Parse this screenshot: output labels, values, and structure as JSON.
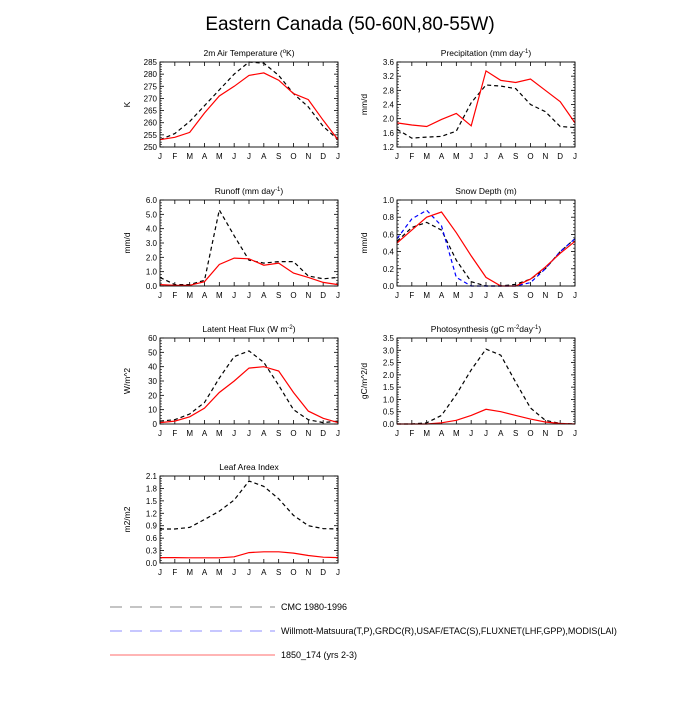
{
  "title": "Eastern Canada (50-60N,80-55W)",
  "chart_data": [
    {
      "type": "line",
      "title": "2m Air Temperature (°K)",
      "title_main": "2m Air Temperature (",
      "title_sup": "o",
      "title_tail": "K)",
      "ylabel": "K",
      "xlabel": "",
      "categories": [
        "J",
        "F",
        "M",
        "A",
        "M",
        "J",
        "J",
        "A",
        "S",
        "O",
        "N",
        "D",
        "J"
      ],
      "ylim": [
        250,
        285
      ],
      "yticks": [
        250,
        255,
        260,
        265,
        270,
        275,
        280,
        285
      ],
      "ytick_labels": [
        "250",
        "255",
        "260",
        "265",
        "270",
        "275",
        "280",
        "285"
      ],
      "series": [
        {
          "name": "CMC 1980-1996",
          "style": "dash-black",
          "values": [
            253.0,
            255.5,
            260.5,
            267.0,
            273.5,
            280.0,
            285.0,
            284.5,
            279.5,
            272.0,
            266.5,
            258.5,
            253.0
          ]
        },
        {
          "name": "1850_174 (yrs 2-3)",
          "style": "solid-red",
          "values": [
            253.0,
            254.0,
            256.0,
            264.0,
            271.0,
            275.0,
            279.5,
            280.5,
            277.5,
            272.0,
            269.5,
            261.0,
            253.0
          ]
        }
      ]
    },
    {
      "type": "line",
      "title": "Precipitation (mm day-1)",
      "title_main": "Precipitation (mm day",
      "title_sup": "-1",
      "title_tail": ")",
      "ylabel": "mm/d",
      "xlabel": "",
      "categories": [
        "J",
        "F",
        "M",
        "A",
        "M",
        "J",
        "J",
        "A",
        "S",
        "O",
        "N",
        "D",
        "J"
      ],
      "ylim": [
        1.2,
        3.6
      ],
      "yticks": [
        1.2,
        1.6,
        2.0,
        2.4,
        2.8,
        3.2,
        3.6
      ],
      "ytick_labels": [
        "1.2",
        "1.6",
        "2.0",
        "2.4",
        "2.8",
        "3.2",
        "3.6"
      ],
      "series": [
        {
          "name": "CMC 1980-1996",
          "style": "dash-black",
          "values": [
            1.7,
            1.45,
            1.48,
            1.5,
            1.65,
            2.45,
            2.95,
            2.92,
            2.85,
            2.4,
            2.2,
            1.78,
            1.75
          ]
        },
        {
          "name": "1850_174 (yrs 2-3)",
          "style": "solid-red",
          "values": [
            1.88,
            1.82,
            1.78,
            1.98,
            2.15,
            1.8,
            3.35,
            3.08,
            3.02,
            3.12,
            2.8,
            2.48,
            1.88
          ]
        }
      ]
    },
    {
      "type": "line",
      "title": "Runoff (mm day-1)",
      "title_main": "Runoff (mm day",
      "title_sup": "-1",
      "title_tail": ")",
      "ylabel": "mm/d",
      "xlabel": "",
      "categories": [
        "J",
        "F",
        "M",
        "A",
        "M",
        "J",
        "J",
        "A",
        "S",
        "O",
        "N",
        "D",
        "J"
      ],
      "ylim": [
        0,
        6
      ],
      "yticks": [
        0,
        1,
        2,
        3,
        4,
        5,
        6
      ],
      "ytick_labels": [
        "0.0",
        "1.0",
        "2.0",
        "3.0",
        "4.0",
        "5.0",
        "6.0"
      ],
      "series": [
        {
          "name": "CMC 1980-1996",
          "style": "dash-black",
          "values": [
            0.6,
            0.1,
            0.1,
            0.4,
            5.3,
            3.5,
            1.8,
            1.6,
            1.7,
            1.7,
            0.7,
            0.5,
            0.6
          ]
        },
        {
          "name": "1850_174 (yrs 2-3)",
          "style": "solid-red",
          "values": [
            0.1,
            0.05,
            0.05,
            0.3,
            1.5,
            1.95,
            1.9,
            1.45,
            1.6,
            0.9,
            0.6,
            0.25,
            0.1
          ]
        }
      ]
    },
    {
      "type": "line",
      "title": "Snow Depth (m)",
      "title_main": "Snow Depth (m)",
      "title_sup": "",
      "title_tail": "",
      "ylabel": "mm/d",
      "xlabel": "",
      "categories": [
        "J",
        "F",
        "M",
        "A",
        "M",
        "J",
        "J",
        "A",
        "S",
        "O",
        "N",
        "D",
        "J"
      ],
      "ylim": [
        0,
        1.0
      ],
      "yticks": [
        0,
        0.2,
        0.4,
        0.6,
        0.8,
        1.0
      ],
      "ytick_labels": [
        "0.0",
        "0.2",
        "0.4",
        "0.6",
        "0.8",
        "1.0"
      ],
      "series": [
        {
          "name": "CMC 1980-1996",
          "style": "dash-black",
          "values": [
            0.52,
            0.68,
            0.74,
            0.65,
            0.3,
            0.05,
            0.0,
            0.0,
            0.02,
            0.08,
            0.2,
            0.4,
            0.55
          ]
        },
        {
          "name": "Willmott-Matsuura(T,P),GRDC(R),USAF/ETAC(S),FLUXNET(LHF,GPP),MODIS(LAI)",
          "style": "dash-blue",
          "values": [
            0.55,
            0.78,
            0.88,
            0.7,
            0.1,
            0.0,
            0.0,
            0.0,
            0.0,
            0.04,
            0.2,
            0.4,
            0.55
          ]
        },
        {
          "name": "1850_174 (yrs 2-3)",
          "style": "solid-red",
          "values": [
            0.5,
            0.65,
            0.8,
            0.86,
            0.62,
            0.35,
            0.1,
            0.0,
            0.0,
            0.08,
            0.22,
            0.38,
            0.52
          ]
        }
      ]
    },
    {
      "type": "line",
      "title": "Latent Heat Flux (W m-2)",
      "title_main": "Latent Heat Flux (W m",
      "title_sup": "-2",
      "title_tail": ")",
      "ylabel": "W/m^2",
      "xlabel": "",
      "categories": [
        "J",
        "F",
        "M",
        "A",
        "M",
        "J",
        "J",
        "A",
        "S",
        "O",
        "N",
        "D",
        "J"
      ],
      "ylim": [
        0,
        60
      ],
      "yticks": [
        0,
        10,
        20,
        30,
        40,
        50,
        60
      ],
      "ytick_labels": [
        "0",
        "10",
        "20",
        "30",
        "40",
        "50",
        "60"
      ],
      "series": [
        {
          "name": "CMC 1980-1996",
          "style": "dash-black",
          "values": [
            2,
            3,
            7,
            15,
            32,
            47,
            51,
            43,
            27,
            10,
            3,
            1,
            2
          ]
        },
        {
          "name": "1850_174 (yrs 2-3)",
          "style": "solid-red",
          "values": [
            1,
            2,
            5,
            11,
            22,
            30,
            39,
            40,
            37,
            22,
            9,
            4,
            1
          ]
        }
      ]
    },
    {
      "type": "line",
      "title": "Photosynthesis (gC m-2day-1)",
      "title_main": "Photosynthesis (gC m",
      "title_sup": "-2",
      "title_tail": "day-1)",
      "title_parts": [
        {
          "t": "Photosynthesis (gC m",
          "sup": false
        },
        {
          "t": "-2",
          "sup": true
        },
        {
          "t": "day",
          "sup": false
        },
        {
          "t": "-1",
          "sup": true
        },
        {
          "t": ")",
          "sup": false
        }
      ],
      "ylabel": "gC/m^2/d",
      "xlabel": "",
      "categories": [
        "J",
        "F",
        "M",
        "A",
        "M",
        "J",
        "J",
        "A",
        "S",
        "O",
        "N",
        "D",
        "J"
      ],
      "ylim": [
        0,
        3.5
      ],
      "yticks": [
        0,
        0.5,
        1.0,
        1.5,
        2.0,
        2.5,
        3.0,
        3.5
      ],
      "ytick_labels": [
        "0.0",
        "0.5",
        "1.0",
        "1.5",
        "2.0",
        "2.5",
        "3.0",
        "3.5"
      ],
      "series": [
        {
          "name": "CMC 1980-1996",
          "style": "dash-black",
          "values": [
            0.0,
            0.0,
            0.05,
            0.35,
            1.2,
            2.2,
            3.05,
            2.8,
            1.7,
            0.65,
            0.15,
            0.02,
            0.0
          ]
        },
        {
          "name": "1850_174 (yrs 2-3)",
          "style": "solid-red",
          "values": [
            0.0,
            0.0,
            0.0,
            0.05,
            0.15,
            0.35,
            0.6,
            0.5,
            0.35,
            0.2,
            0.08,
            0.02,
            0.0
          ]
        }
      ]
    },
    {
      "type": "line",
      "title": "Leaf Area Index",
      "title_main": "Leaf Area Index",
      "title_sup": "",
      "title_tail": "",
      "ylabel": "m2/m2",
      "xlabel": "",
      "categories": [
        "J",
        "F",
        "M",
        "A",
        "M",
        "J",
        "J",
        "A",
        "S",
        "O",
        "N",
        "D",
        "J"
      ],
      "ylim": [
        0,
        2.1
      ],
      "yticks": [
        0,
        0.3,
        0.6,
        0.9,
        1.2,
        1.5,
        1.8,
        2.1
      ],
      "ytick_labels": [
        "0.0",
        "0.3",
        "0.6",
        "0.9",
        "1.2",
        "1.5",
        "1.8",
        "2.1"
      ],
      "series": [
        {
          "name": "CMC 1980-1996",
          "style": "dash-black",
          "values": [
            0.82,
            0.82,
            0.86,
            1.05,
            1.25,
            1.52,
            1.98,
            1.85,
            1.55,
            1.15,
            0.9,
            0.83,
            0.82
          ]
        },
        {
          "name": "1850_174 (yrs 2-3)",
          "style": "solid-red",
          "values": [
            0.13,
            0.13,
            0.125,
            0.125,
            0.125,
            0.15,
            0.25,
            0.27,
            0.27,
            0.24,
            0.18,
            0.14,
            0.13
          ]
        }
      ]
    }
  ],
  "legend": {
    "position": "bottom-left",
    "entries": [
      {
        "label": "CMC 1980-1996",
        "style": "dash-gray"
      },
      {
        "label": "Willmott-Matsuura(T,P),GRDC(R),USAF/ETAC(S),FLUXNET(LHF,GPP),MODIS(LAI)",
        "style": "dash-blue"
      },
      {
        "label": "1850_174 (yrs 2-3)",
        "style": "solid-red"
      }
    ]
  },
  "colors": {
    "black": "#000000",
    "red": "#ff0000",
    "blue": "#0000ff",
    "gray": "#888888",
    "lightblue": "#8f8fff",
    "lightred": "#ff6b6b"
  }
}
